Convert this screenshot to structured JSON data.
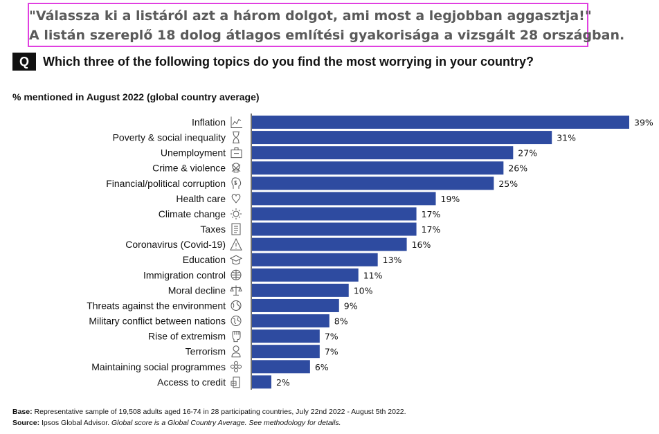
{
  "header": {
    "hu_line1": "\"Válassza ki a listáról azt a három dolgot, ami most a legjobban aggasztja!\"",
    "hu_line2": "A listán szereplő 18 dolog átlagos említési gyakorisága a vizsgált 28 országban.",
    "q_badge": "Q",
    "question": "Which three of the following topics do you find the most worrying in your country?",
    "subtitle": "% mentioned in August 2022 (global country average)"
  },
  "chart_data": {
    "type": "bar",
    "orientation": "horizontal",
    "categories": [
      "Inflation",
      "Poverty & social inequality",
      "Unemployment",
      "Crime & violence",
      "Financial/political corruption",
      "Health care",
      "Climate change",
      "Taxes",
      "Coronavirus (Covid-19)",
      "Education",
      "Immigration control",
      "Moral decline",
      "Threats against the environment",
      "Military conflict between nations",
      "Rise of extremism",
      "Terrorism",
      "Maintaining social programmes",
      "Access to credit"
    ],
    "values": [
      39,
      31,
      27,
      26,
      25,
      19,
      17,
      17,
      16,
      13,
      11,
      10,
      9,
      8,
      7,
      7,
      6,
      2
    ],
    "value_labels": [
      "39%",
      "31%",
      "27%",
      "26%",
      "25%",
      "19%",
      "17%",
      "17%",
      "16%",
      "13%",
      "11%",
      "10%",
      "9%",
      "8%",
      "7%",
      "7%",
      "6%",
      "2%"
    ],
    "icons": [
      "line-chart-icon",
      "hourglass-icon",
      "briefcase-icon",
      "skull-icon",
      "money-head-icon",
      "heart-hand-icon",
      "sun-icon",
      "receipt-icon",
      "warning-triangle-icon",
      "graduation-cap-icon",
      "globe-icon",
      "scale-icon",
      "globe-leaf-icon",
      "earth-conflict-icon",
      "fist-icon",
      "person-icon",
      "flower-icon",
      "phone-card-icon"
    ],
    "xlim": [
      0,
      39
    ],
    "bar_color": "#2E4BA0",
    "grid": false
  },
  "footer": {
    "base_label": "Base:",
    "base_text": " Representative sample of 19,508 adults aged 16-74 in 28 participating countries, July 22nd 2022 - August 5th 2022.",
    "source_label": "Source:",
    "source_text": " Ipsos Global Advisor. ",
    "source_italic": "Global score is a Global Country Average. See methodology for details."
  },
  "colors": {
    "highlight_border": "#e040e0",
    "bar": "#2E4BA0",
    "hu_text": "#5a5a5a"
  }
}
